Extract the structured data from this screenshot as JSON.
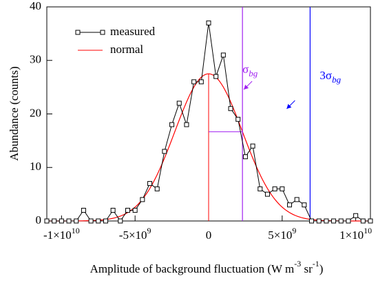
{
  "chart_data": {
    "type": "line",
    "xlabel": [
      "Amplitude of background fluctuation (W m",
      "-3",
      " sr",
      "-1",
      ")"
    ],
    "ylabel": "Abundance (counts)",
    "xlim": [
      -11000000000,
      11000000000
    ],
    "ylim": [
      0,
      40
    ],
    "xticks": [
      {
        "value": -10000000000,
        "label": "-1×10",
        "exp": "10"
      },
      {
        "value": -5000000000,
        "label": "-5×10",
        "exp": "9"
      },
      0,
      {
        "value": 5000000000,
        "label": "5×10",
        "exp": "9"
      },
      {
        "value": 10000000000,
        "label": "1×10",
        "exp": "10"
      }
    ],
    "yticks": [
      0,
      10,
      20,
      30,
      40
    ],
    "x": [
      -11000000000,
      -10500000000,
      -10000000000,
      -9500000000,
      -9000000000,
      -8500000000,
      -8000000000,
      -7500000000,
      -7000000000,
      -6500000000,
      -6000000000,
      -5500000000,
      -5000000000,
      -4500000000,
      -4000000000,
      -3500000000,
      -3000000000,
      -2500000000,
      -2000000000,
      -1500000000,
      -1000000000,
      -500000000,
      0,
      500000000,
      1000000000,
      1500000000,
      2000000000,
      2500000000,
      3000000000,
      3500000000,
      4000000000,
      4500000000,
      5000000000,
      5500000000,
      6000000000,
      6500000000,
      7000000000,
      7500000000,
      8000000000,
      8500000000,
      9000000000,
      9500000000,
      10000000000,
      10500000000,
      11000000000
    ],
    "series": [
      {
        "name": "measured",
        "color": "#000000",
        "values": [
          0,
          0,
          0,
          0,
          0,
          2,
          0,
          0,
          0,
          2,
          0,
          2,
          2,
          4,
          7,
          6,
          13,
          18,
          22,
          18,
          26,
          26,
          37,
          27,
          31,
          21,
          19,
          12,
          14,
          6,
          5,
          6,
          6,
          3,
          4,
          3,
          0,
          0,
          0,
          0,
          0,
          0,
          1,
          0,
          0
        ]
      }
    ],
    "normal": {
      "name": "normal",
      "color": "#ff0000",
      "amplitude": 27.5,
      "mean": 0,
      "sigma": 2300000000
    },
    "vlines": [
      {
        "label": "σ",
        "sub": "bg",
        "value": 2300000000,
        "color": "#a020f0"
      },
      {
        "label": "3σ",
        "sub": "bg",
        "value": 6900000000,
        "color": "#0000ff"
      }
    ]
  }
}
